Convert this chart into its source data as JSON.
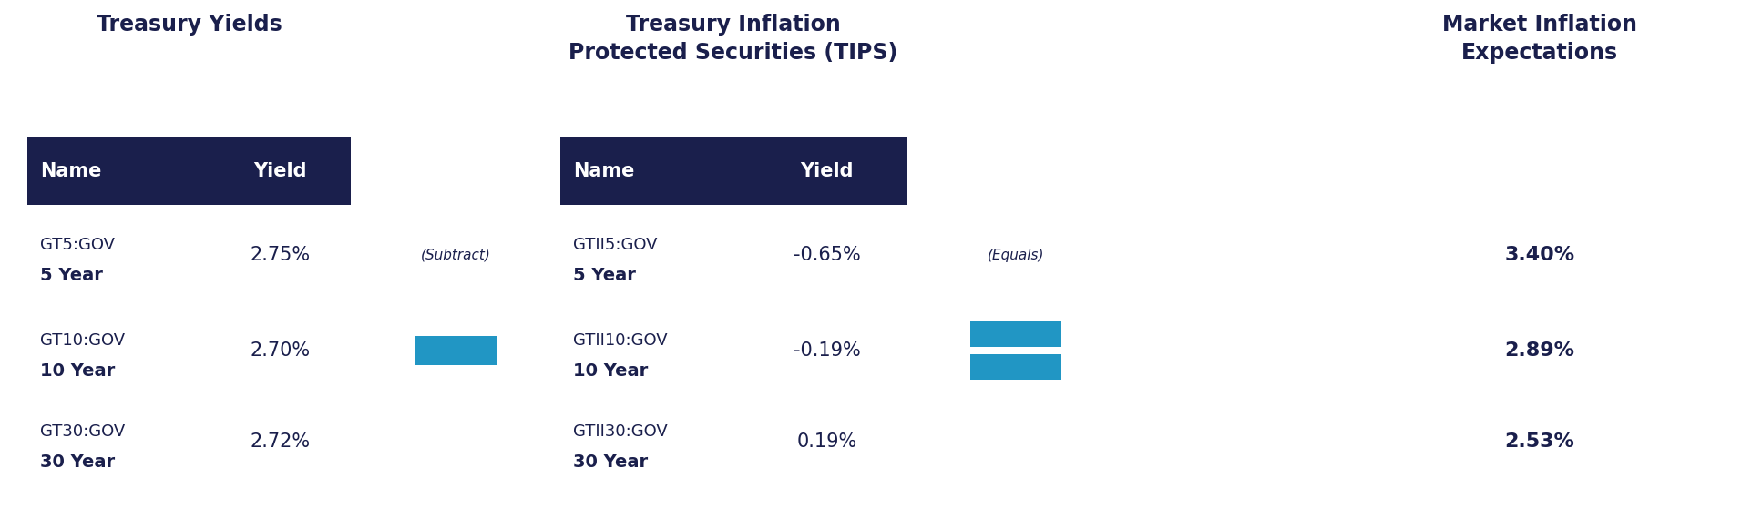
{
  "title_left": "Treasury Yields",
  "title_center": "Treasury Inflation\nProtected Securities (TIPS)",
  "title_right": "Market Inflation\nExpectations",
  "header_bg_color": "#1a1f4c",
  "header_text_color": "#ffffff",
  "text_color": "#1a1f4c",
  "blue_color": "#2196c4",
  "bg_color": "#ffffff",
  "left_table": {
    "rows": [
      [
        "GT5:GOV",
        "5 Year",
        "2.75%"
      ],
      [
        "GT10:GOV",
        "10 Year",
        "2.70%"
      ],
      [
        "GT30:GOV",
        "30 Year",
        "2.72%"
      ]
    ]
  },
  "center_table": {
    "rows": [
      [
        "GTII5:GOV",
        "5 Year",
        "-0.65%"
      ],
      [
        "GTII10:GOV",
        "10 Year",
        "-0.19%"
      ],
      [
        "GTII30:GOV",
        "30 Year",
        "0.19%"
      ]
    ]
  },
  "right_values": [
    "3.40%",
    "2.89%",
    "2.53%"
  ],
  "subtract_label": "(Subtract)",
  "equals_label": "(Equals)"
}
